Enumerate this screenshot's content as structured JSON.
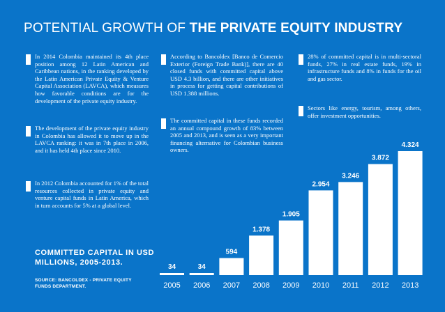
{
  "title": {
    "part1": "POTENTIAL GROWTH OF ",
    "part2": "THE PRIVATE EQUITY INDUSTRY"
  },
  "paragraphs": [
    "In 2014 Colombia maintained its 4th place position among 12 Latin American and Caribbean nations, in the ranking developed by the Latin American Private Equity & Venture Capital Association (LAVCA), which measures how favorable conditions are for the development of the private equity industry.",
    "The development of the private equity industry in Colombia has allowed it to move up in the LAVCA ranking: it was in 7th place in 2006, and it has held 4th place since 2010.",
    "In 2012 Colombia accounted for 1% of the total resources collected in private equity and venture capital funds in Latin America, which in turn accounts for 5% at a global level.",
    "According to Bancoldex [Banco de Comercio Exterior (Foreign Trade Bank)], there are 40 closed funds with committed capital above USD 4.3 billion, and there are other initiatives in process for getting capital contributions of USD 1.388 millions.",
    "The committed capital in these funds recorded an annual compound growth of 83% between 2005 and 2013, and is seen as a very important financing alternative for Colombian business owners.",
    "28% of committed capital is in multi-sectoral funds, 27% in real estate funds, 19% in infrastructure funds and 8% in funds for the oil and gas sector.",
    "Sectors like energy, tourism, among others, offer investment opportunities."
  ],
  "caption": "COMMITTED CAPITAL IN USD MILLIONS, 2005-2013.",
  "source": "SOURCE: BANCOLDEX - PRIVATE EQUITY FUNDS DEPARTMENT.",
  "colors": {
    "background": "#0a74c9",
    "bars": "#ffffff",
    "text": "#ffffff"
  },
  "chart_data": {
    "type": "bar",
    "title": "Committed capital in USD millions, 2005-2013",
    "categories": [
      "2005",
      "2006",
      "2007",
      "2008",
      "2009",
      "2010",
      "2011",
      "2012",
      "2013"
    ],
    "values": [
      34,
      34,
      594,
      1378,
      1905,
      2954,
      3246,
      3872,
      4324
    ],
    "value_labels": [
      "34",
      "34",
      "594",
      "1.378",
      "1.905",
      "2.954",
      "3.246",
      "3.872",
      "4.324"
    ],
    "xlabel": "",
    "ylabel": "USD millions",
    "ylim": [
      0,
      4324
    ],
    "grid": false
  }
}
